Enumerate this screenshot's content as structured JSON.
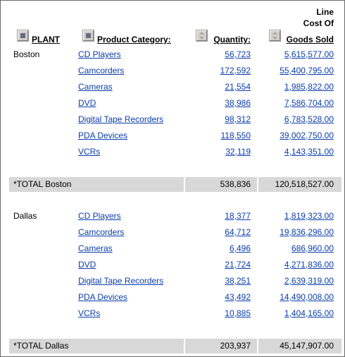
{
  "headers": {
    "plant": "PLANT",
    "category": "Product Category:",
    "quantity": "Quantity:",
    "cost_line1": "Line",
    "cost_line2": "Cost Of",
    "cost_line3": "Goods Sold"
  },
  "groups": [
    {
      "plant": "Boston",
      "rows": [
        {
          "category": "CD Players",
          "quantity": "56,723",
          "cost": "5,615,577.00"
        },
        {
          "category": "Camcorders",
          "quantity": "172,592",
          "cost": "55,400,795.00"
        },
        {
          "category": "Cameras",
          "quantity": "21,554",
          "cost": "1,985,822.00"
        },
        {
          "category": "DVD",
          "quantity": "38,986",
          "cost": "7,586,704.00"
        },
        {
          "category": "Digital Tape Recorders",
          "quantity": "98,312",
          "cost": "6,783,528.00"
        },
        {
          "category": "PDA Devices",
          "quantity": "118,550",
          "cost": "39,002,750.00"
        },
        {
          "category": "VCRs",
          "quantity": "32,119",
          "cost": "4,143,351.00"
        }
      ],
      "total": {
        "label": "*TOTAL Boston",
        "quantity": "538,836",
        "cost": "120,518,527.00"
      }
    },
    {
      "plant": "Dallas",
      "rows": [
        {
          "category": "CD Players",
          "quantity": "18,377",
          "cost": "1,819,323.00"
        },
        {
          "category": "Camcorders",
          "quantity": "64,712",
          "cost": "19,836,296.00"
        },
        {
          "category": "Cameras",
          "quantity": "6,496",
          "cost": "686,960.00"
        },
        {
          "category": "DVD",
          "quantity": "21,724",
          "cost": "4,271,836.00"
        },
        {
          "category": "Digital Tape Recorders",
          "quantity": "38,251",
          "cost": "2,639,319.00"
        },
        {
          "category": "PDA Devices",
          "quantity": "43,492",
          "cost": "14,490,008.00"
        },
        {
          "category": "VCRs",
          "quantity": "10,885",
          "cost": "1,404,165.00"
        }
      ],
      "total": {
        "label": "*TOTAL Dallas",
        "quantity": "203,937",
        "cost": "45,147,907.00"
      }
    }
  ]
}
